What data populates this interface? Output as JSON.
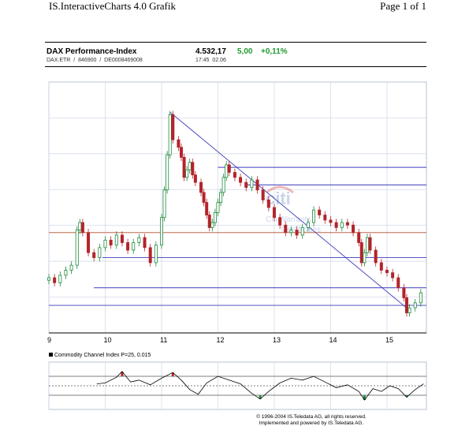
{
  "page": {
    "header_left": "IS.InteractiveCharts 4.0 Grafik",
    "header_right": "Page 1 of 1"
  },
  "instrument": {
    "name": "DAX Performance-Index",
    "exchange": "DAX.ETR",
    "wkn": "846900",
    "isin": "DE0008469008",
    "price": "4.532,17",
    "change": "5,00",
    "change_pct": "+0,11%",
    "time": "17:45",
    "date": "02.06"
  },
  "watermark": {
    "logo": "citi",
    "line1": "Citi Warrants",
    "line2": "Certificates"
  },
  "colors": {
    "up": "#1e8a3c",
    "down": "#b3242b",
    "trend": "#3b3bbd",
    "resistance": "#b04a2a",
    "grid": "#cfd6e8"
  },
  "indicator": {
    "label": "Commodity Channel Index P=25, 0.015"
  },
  "footer": {
    "line1": "© 1996-2004 IS.Teledata AG, all rights reserved.",
    "line2": "Implemented and powered by IS.Teledata AG."
  },
  "chart_data": {
    "type": "candlestick",
    "x_ticks": [
      "9",
      "10",
      "11",
      "12",
      "13",
      "14",
      "15"
    ],
    "x_range": [
      9,
      15.7
    ],
    "y_range": [
      0,
      100
    ],
    "grid": true,
    "y_scale_note": "price axis unlabeled; values in relative chart units",
    "series_close": [
      {
        "x": 9.0,
        "v": 22
      },
      {
        "x": 9.1,
        "v": 20
      },
      {
        "x": 9.2,
        "v": 23
      },
      {
        "x": 9.3,
        "v": 25
      },
      {
        "x": 9.4,
        "v": 27
      },
      {
        "x": 9.5,
        "v": 41
      },
      {
        "x": 9.55,
        "v": 44
      },
      {
        "x": 9.6,
        "v": 40
      },
      {
        "x": 9.7,
        "v": 32
      },
      {
        "x": 9.8,
        "v": 30
      },
      {
        "x": 9.9,
        "v": 34
      },
      {
        "x": 10.0,
        "v": 37
      },
      {
        "x": 10.1,
        "v": 35
      },
      {
        "x": 10.2,
        "v": 39
      },
      {
        "x": 10.3,
        "v": 36
      },
      {
        "x": 10.4,
        "v": 33
      },
      {
        "x": 10.5,
        "v": 36
      },
      {
        "x": 10.6,
        "v": 38
      },
      {
        "x": 10.7,
        "v": 34
      },
      {
        "x": 10.8,
        "v": 28
      },
      {
        "x": 10.9,
        "v": 35
      },
      {
        "x": 11.0,
        "v": 46
      },
      {
        "x": 11.05,
        "v": 57
      },
      {
        "x": 11.1,
        "v": 71
      },
      {
        "x": 11.15,
        "v": 87
      },
      {
        "x": 11.2,
        "v": 77
      },
      {
        "x": 11.3,
        "v": 74
      },
      {
        "x": 11.35,
        "v": 70
      },
      {
        "x": 11.4,
        "v": 62
      },
      {
        "x": 11.45,
        "v": 65
      },
      {
        "x": 11.5,
        "v": 68
      },
      {
        "x": 11.55,
        "v": 63
      },
      {
        "x": 11.6,
        "v": 60
      },
      {
        "x": 11.7,
        "v": 56
      },
      {
        "x": 11.75,
        "v": 52
      },
      {
        "x": 11.8,
        "v": 47
      },
      {
        "x": 11.85,
        "v": 42
      },
      {
        "x": 11.9,
        "v": 44
      },
      {
        "x": 11.95,
        "v": 48
      },
      {
        "x": 12.0,
        "v": 52
      },
      {
        "x": 12.05,
        "v": 56
      },
      {
        "x": 12.1,
        "v": 62
      },
      {
        "x": 12.15,
        "v": 67
      },
      {
        "x": 12.2,
        "v": 64
      },
      {
        "x": 12.3,
        "v": 62
      },
      {
        "x": 12.4,
        "v": 60
      },
      {
        "x": 12.5,
        "v": 58
      },
      {
        "x": 12.6,
        "v": 61
      },
      {
        "x": 12.7,
        "v": 57
      },
      {
        "x": 12.8,
        "v": 53
      },
      {
        "x": 12.9,
        "v": 50
      },
      {
        "x": 13.0,
        "v": 46
      },
      {
        "x": 13.1,
        "v": 43
      },
      {
        "x": 13.2,
        "v": 40
      },
      {
        "x": 13.3,
        "v": 41
      },
      {
        "x": 13.4,
        "v": 39
      },
      {
        "x": 13.5,
        "v": 42
      },
      {
        "x": 13.6,
        "v": 44
      },
      {
        "x": 13.7,
        "v": 49
      },
      {
        "x": 13.8,
        "v": 47
      },
      {
        "x": 13.9,
        "v": 45
      },
      {
        "x": 14.0,
        "v": 44
      },
      {
        "x": 14.1,
        "v": 42
      },
      {
        "x": 14.2,
        "v": 44
      },
      {
        "x": 14.3,
        "v": 43
      },
      {
        "x": 14.4,
        "v": 40
      },
      {
        "x": 14.5,
        "v": 36
      },
      {
        "x": 14.55,
        "v": 28
      },
      {
        "x": 14.6,
        "v": 32
      },
      {
        "x": 14.65,
        "v": 38
      },
      {
        "x": 14.7,
        "v": 33
      },
      {
        "x": 14.8,
        "v": 28
      },
      {
        "x": 14.9,
        "v": 25
      },
      {
        "x": 15.0,
        "v": 24
      },
      {
        "x": 15.1,
        "v": 22
      },
      {
        "x": 15.2,
        "v": 18
      },
      {
        "x": 15.3,
        "v": 14
      },
      {
        "x": 15.35,
        "v": 8
      },
      {
        "x": 15.4,
        "v": 10
      },
      {
        "x": 15.5,
        "v": 12
      },
      {
        "x": 15.6,
        "v": 16
      }
    ],
    "trendline": [
      {
        "x": 11.15,
        "v": 88
      },
      {
        "x": 15.4,
        "v": 9
      }
    ],
    "horizontal_levels": [
      {
        "from": 12.0,
        "v": 66,
        "color": "trend"
      },
      {
        "from": 12.5,
        "v": 59,
        "color": "trend"
      },
      {
        "from": 9.0,
        "v": 40,
        "color": "resistance"
      },
      {
        "from": 9.95,
        "v": 30,
        "color": "trend"
      },
      {
        "from": 9.8,
        "v": 18,
        "color": "trend"
      },
      {
        "from": 9.0,
        "v": 11,
        "color": "trend"
      }
    ],
    "cci": {
      "label": "Commodity Channel Index P=25, 0.015",
      "range": [
        -250,
        250
      ],
      "reference_lines": [
        100,
        0,
        -100
      ],
      "values": [
        {
          "x": 9.85,
          "v": 20
        },
        {
          "x": 10.0,
          "v": 30
        },
        {
          "x": 10.2,
          "v": 90
        },
        {
          "x": 10.3,
          "v": 150
        },
        {
          "x": 10.45,
          "v": 40
        },
        {
          "x": 10.6,
          "v": 60
        },
        {
          "x": 10.8,
          "v": 10
        },
        {
          "x": 11.0,
          "v": 80
        },
        {
          "x": 11.2,
          "v": 140
        },
        {
          "x": 11.35,
          "v": 60
        },
        {
          "x": 11.5,
          "v": -40
        },
        {
          "x": 11.65,
          "v": -90
        },
        {
          "x": 11.8,
          "v": 30
        },
        {
          "x": 12.0,
          "v": 100
        },
        {
          "x": 12.2,
          "v": 60
        },
        {
          "x": 12.4,
          "v": 20
        },
        {
          "x": 12.6,
          "v": -80
        },
        {
          "x": 12.75,
          "v": -140
        },
        {
          "x": 12.9,
          "v": -60
        },
        {
          "x": 13.1,
          "v": 30
        },
        {
          "x": 13.3,
          "v": 80
        },
        {
          "x": 13.5,
          "v": 60
        },
        {
          "x": 13.7,
          "v": 100
        },
        {
          "x": 13.9,
          "v": 40
        },
        {
          "x": 14.1,
          "v": -20
        },
        {
          "x": 14.3,
          "v": 10
        },
        {
          "x": 14.5,
          "v": -60
        },
        {
          "x": 14.6,
          "v": -150
        },
        {
          "x": 14.75,
          "v": -30
        },
        {
          "x": 14.9,
          "v": -60
        },
        {
          "x": 15.05,
          "v": 0
        },
        {
          "x": 15.2,
          "v": -30
        },
        {
          "x": 15.35,
          "v": -120
        },
        {
          "x": 15.5,
          "v": -40
        },
        {
          "x": 15.65,
          "v": 20
        }
      ]
    }
  }
}
